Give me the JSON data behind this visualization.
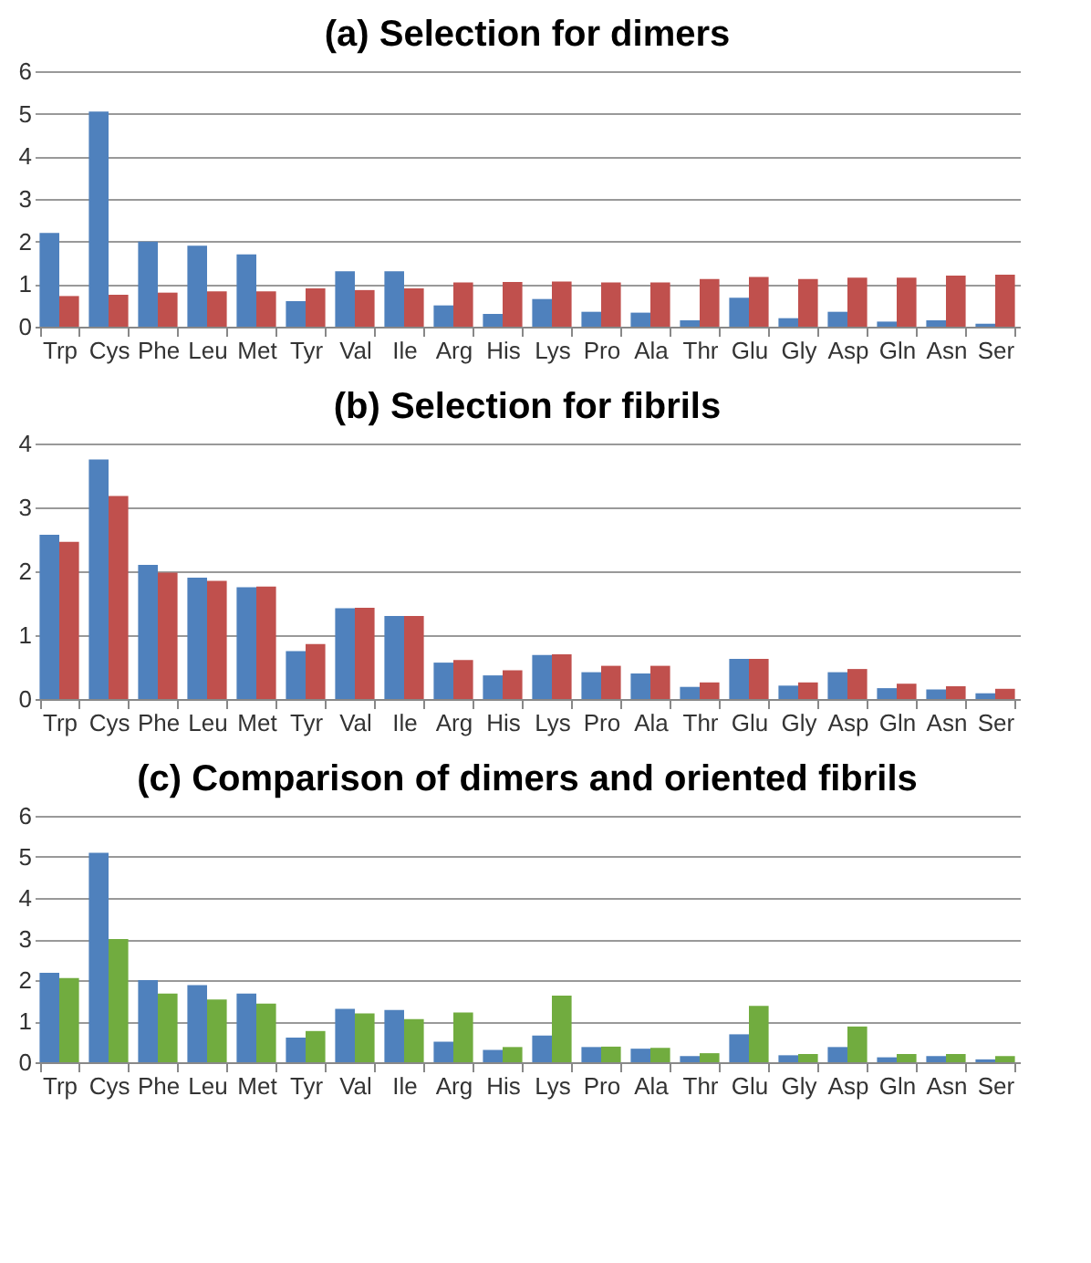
{
  "chart_data": [
    {
      "type": "bar",
      "title": "(a) Selection for dimers",
      "categories": [
        "Trp",
        "Cys",
        "Phe",
        "Leu",
        "Met",
        "Tyr",
        "Val",
        "Ile",
        "Arg",
        "His",
        "Lys",
        "Pro",
        "Ala",
        "Thr",
        "Glu",
        "Gly",
        "Asp",
        "Gln",
        "Asn",
        "Ser"
      ],
      "ylim": [
        0,
        6
      ],
      "yticks": [
        0,
        1,
        2,
        3,
        4,
        5,
        6
      ],
      "grid": "y",
      "series": [
        {
          "color": "#4f81bd",
          "values": [
            2.2,
            5.05,
            2.0,
            1.9,
            1.7,
            0.6,
            1.3,
            1.3,
            0.5,
            0.3,
            0.65,
            0.35,
            0.33,
            0.15,
            0.68,
            0.2,
            0.35,
            0.12,
            0.15,
            0.07
          ]
        },
        {
          "color": "#c0504d",
          "values": [
            0.72,
            0.75,
            0.8,
            0.83,
            0.83,
            0.9,
            0.86,
            0.9,
            1.04,
            1.05,
            1.06,
            1.04,
            1.04,
            1.12,
            1.17,
            1.12,
            1.15,
            1.15,
            1.2,
            1.22
          ]
        }
      ]
    },
    {
      "type": "bar",
      "title": "(b) Selection for fibrils",
      "categories": [
        "Trp",
        "Cys",
        "Phe",
        "Leu",
        "Met",
        "Tyr",
        "Val",
        "Ile",
        "Arg",
        "His",
        "Lys",
        "Pro",
        "Ala",
        "Thr",
        "Glu",
        "Gly",
        "Asp",
        "Gln",
        "Asn",
        "Ser"
      ],
      "ylim": [
        0,
        4
      ],
      "yticks": [
        0,
        1,
        2,
        3,
        4
      ],
      "grid": "y",
      "series": [
        {
          "color": "#4f81bd",
          "values": [
            2.57,
            3.75,
            2.1,
            1.9,
            1.75,
            0.75,
            1.42,
            1.3,
            0.57,
            0.37,
            0.69,
            0.42,
            0.4,
            0.19,
            0.63,
            0.21,
            0.42,
            0.17,
            0.15,
            0.09
          ]
        },
        {
          "color": "#c0504d",
          "values": [
            2.46,
            3.18,
            1.98,
            1.85,
            1.76,
            0.86,
            1.43,
            1.3,
            0.61,
            0.45,
            0.7,
            0.52,
            0.52,
            0.26,
            0.63,
            0.26,
            0.47,
            0.24,
            0.2,
            0.16
          ]
        }
      ]
    },
    {
      "type": "bar",
      "title": "(c) Comparison of dimers and oriented fibrils",
      "categories": [
        "Trp",
        "Cys",
        "Phe",
        "Leu",
        "Met",
        "Tyr",
        "Val",
        "Ile",
        "Arg",
        "His",
        "Lys",
        "Pro",
        "Ala",
        "Thr",
        "Glu",
        "Gly",
        "Asp",
        "Gln",
        "Asn",
        "Ser"
      ],
      "ylim": [
        0,
        6
      ],
      "yticks": [
        0,
        1,
        2,
        3,
        4,
        5,
        6
      ],
      "grid": "y",
      "series": [
        {
          "color": "#4f81bd",
          "values": [
            2.18,
            5.1,
            2.0,
            1.88,
            1.67,
            0.6,
            1.3,
            1.27,
            0.5,
            0.3,
            0.65,
            0.37,
            0.33,
            0.15,
            0.68,
            0.17,
            0.37,
            0.12,
            0.15,
            0.07
          ]
        },
        {
          "color": "#71ac3f",
          "values": [
            2.05,
            3.0,
            1.67,
            1.53,
            1.43,
            0.76,
            1.19,
            1.05,
            1.21,
            0.37,
            1.62,
            0.38,
            0.35,
            0.22,
            1.37,
            0.2,
            0.87,
            0.2,
            0.2,
            0.15
          ]
        }
      ]
    }
  ]
}
